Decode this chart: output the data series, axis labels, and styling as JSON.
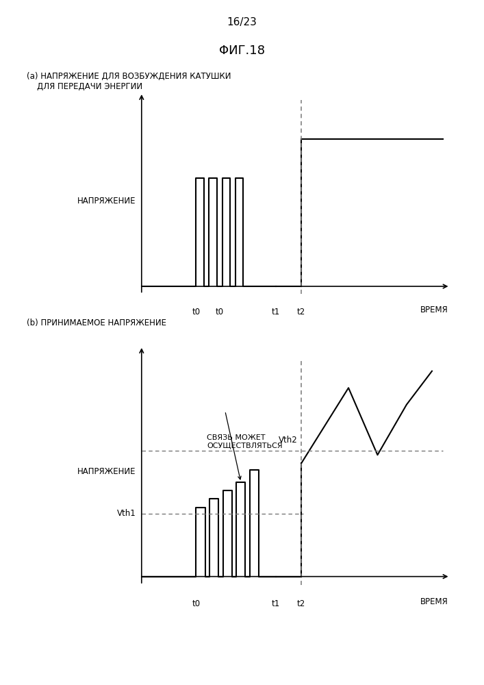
{
  "page_label": "16/23",
  "fig_title": "ΦИГ.18",
  "subplot_a_label": "(a) НАПРЯЖЕНИЕ ДЛЯ ВОЗБУЖДЕНИЯ КАТУШКИ\n    ДЛЯ ПЕРЕДАЧИ ЭНЕРГИИ",
  "subplot_b_label": "(b) ПРИНИМАЕМОЕ НАПРЯЖЕНИЕ",
  "ylabel": "НАПРЯЖЕНИЕ",
  "xlabel": "ВРЕМЯ",
  "t0_label": "t0",
  "t1_label": "t1",
  "t2_label": "t2",
  "vth1_label": "Vth1",
  "vth2_label": "Vth2",
  "communication_label": "СВЯЗЬ МОЖЕТ\nОСУЩЕСТВЛЯТЬСЯ",
  "background_color": "#ffffff",
  "line_color": "#000000",
  "dashed_color": "#777777"
}
